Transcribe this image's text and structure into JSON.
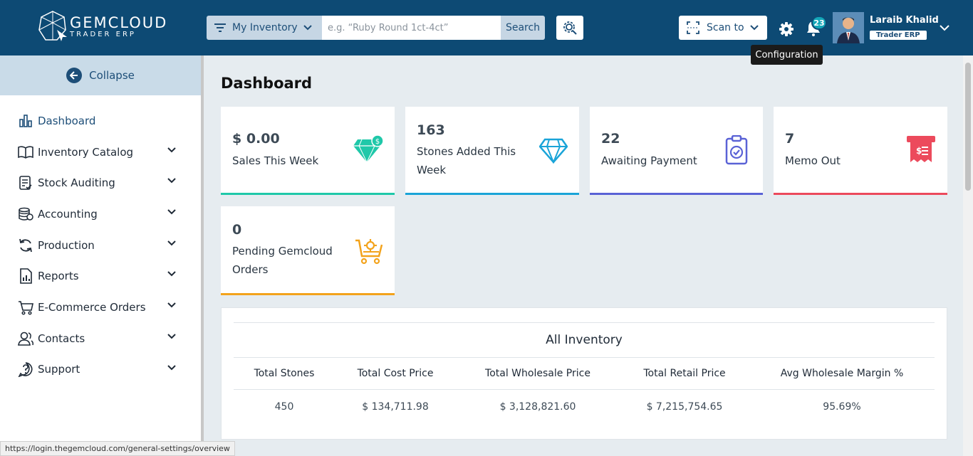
{
  "brand": {
    "name": "GEMCLOUD",
    "tagline": "TRADER ERP"
  },
  "search": {
    "scope_label": "My Inventory",
    "placeholder": "e.g. “Ruby Round 1ct-4ct”",
    "button_label": "Search"
  },
  "toolbar": {
    "scan_label": "Scan to",
    "notification_count": "23",
    "tooltip": "Configuration"
  },
  "user": {
    "name": "Laraib Khalid",
    "role": "Trader ERP"
  },
  "sidebar": {
    "collapse_label": "Collapse",
    "items": [
      {
        "label": "Dashboard",
        "icon": "chart-bar-icon"
      },
      {
        "label": "Inventory Catalog",
        "icon": "book-icon"
      },
      {
        "label": "Stock Auditing",
        "icon": "clipboard-icon"
      },
      {
        "label": "Accounting",
        "icon": "coins-icon"
      },
      {
        "label": "Production",
        "icon": "refresh-icon"
      },
      {
        "label": "Reports",
        "icon": "report-icon"
      },
      {
        "label": "E-Commerce Orders",
        "icon": "cart-icon"
      },
      {
        "label": "Contacts",
        "icon": "users-icon"
      },
      {
        "label": "Support",
        "icon": "help-icon"
      }
    ]
  },
  "dashboard": {
    "title": "Dashboard",
    "cards": [
      {
        "value": "$ 0.00",
        "label": "Sales This Week",
        "color": "#1fc8a9"
      },
      {
        "value": "163",
        "label": "Stones Added This Week",
        "color": "#1aa4d8"
      },
      {
        "value": "22",
        "label": "Awaiting Payment",
        "color": "#5a62d6"
      },
      {
        "value": "7",
        "label": "Memo Out",
        "color": "#ec4a5c"
      },
      {
        "value": "0",
        "label": "Pending Gemcloud Orders",
        "color": "#f3a31c"
      }
    ],
    "inventory": {
      "title": "All Inventory",
      "headers": [
        "Total Stones",
        "Total Cost Price",
        "Total Wholesale Price",
        "Total Retail Price",
        "Avg Wholesale Margin %"
      ],
      "values": [
        "450",
        "$ 134,711.98",
        "$ 3,128,821.60",
        "$ 7,215,754.65",
        "95.69%"
      ]
    }
  },
  "status_url": "https://login.thegemcloud.com/general-settings/overview"
}
